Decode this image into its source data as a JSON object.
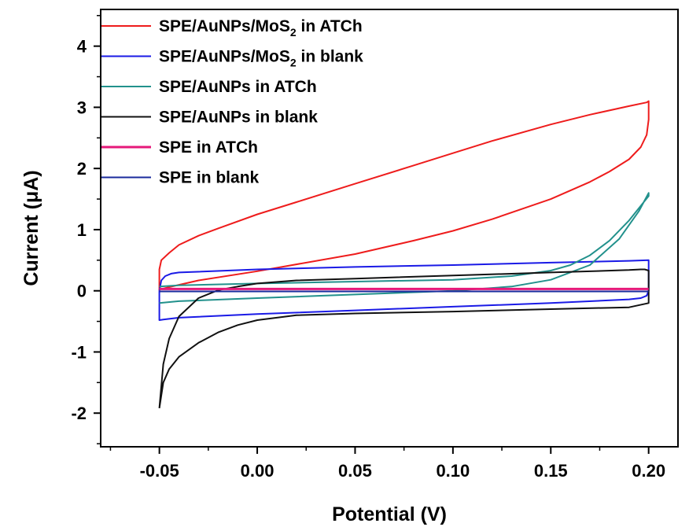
{
  "chart_data": {
    "type": "line",
    "title": "",
    "xlabel": "Potential (V)",
    "ylabel": "Current (μA)",
    "xlim": [
      -0.08,
      0.215
    ],
    "ylim": [
      -2.55,
      4.6
    ],
    "x_ticks": [
      -0.05,
      0.0,
      0.05,
      0.1,
      0.15,
      0.2
    ],
    "x_tick_labels": [
      "-0.05",
      "0.00",
      "0.05",
      "0.10",
      "0.15",
      "0.20"
    ],
    "y_ticks": [
      -2,
      -1,
      0,
      1,
      2,
      3,
      4
    ],
    "y_tick_labels": [
      "-2",
      "-1",
      "0",
      "1",
      "2",
      "3",
      "4"
    ],
    "grid": false,
    "legend_position": "top-left",
    "series": [
      {
        "name": "SPE/AuNPs/MoS2 in ATCh",
        "legend": {
          "main": "SPE/AuNPs/MoS",
          "sub": "2",
          "tail": " in ATCh"
        },
        "color": "#ee1c1c",
        "x": [
          -0.05,
          -0.05,
          -0.049,
          -0.045,
          -0.04,
          -0.03,
          -0.02,
          0.0,
          0.02,
          0.05,
          0.08,
          0.1,
          0.12,
          0.15,
          0.17,
          0.19,
          0.199,
          0.2,
          0.2,
          0.199,
          0.196,
          0.19,
          0.18,
          0.17,
          0.15,
          0.12,
          0.1,
          0.08,
          0.05,
          0.0,
          -0.03,
          -0.045,
          -0.05
        ],
        "y": [
          0.0,
          0.35,
          0.5,
          0.62,
          0.75,
          0.9,
          1.02,
          1.25,
          1.45,
          1.75,
          2.05,
          2.25,
          2.45,
          2.72,
          2.88,
          3.02,
          3.08,
          3.1,
          2.8,
          2.55,
          2.35,
          2.15,
          1.95,
          1.78,
          1.5,
          1.17,
          0.98,
          0.82,
          0.6,
          0.32,
          0.17,
          0.06,
          0.02
        ]
      },
      {
        "name": "SPE/AuNPs/MoS2 in blank",
        "legend": {
          "main": "SPE/AuNPs/MoS",
          "sub": "2",
          "tail": " in blank"
        },
        "color": "#1a1ae6",
        "x": [
          -0.05,
          -0.049,
          -0.047,
          -0.044,
          -0.04,
          0.0,
          0.05,
          0.1,
          0.15,
          0.19,
          0.2,
          0.2,
          0.199,
          0.196,
          0.19,
          0.15,
          0.1,
          0.05,
          0.0,
          -0.04,
          -0.048,
          -0.05,
          -0.05
        ],
        "y": [
          0.0,
          0.17,
          0.24,
          0.28,
          0.3,
          0.35,
          0.39,
          0.42,
          0.46,
          0.49,
          0.5,
          0.0,
          -0.08,
          -0.12,
          -0.14,
          -0.2,
          -0.26,
          -0.32,
          -0.38,
          -0.44,
          -0.47,
          -0.48,
          0.0
        ]
      },
      {
        "name": "SPE/AuNPs in ATCh",
        "legend": {
          "main": "SPE/AuNPs in ATCh"
        },
        "color": "#22918c",
        "x": [
          -0.05,
          -0.04,
          0.0,
          0.05,
          0.1,
          0.13,
          0.15,
          0.17,
          0.185,
          0.195,
          0.2,
          0.2,
          0.19,
          0.18,
          0.17,
          0.16,
          0.15,
          0.13,
          0.1,
          0.05,
          0.0,
          -0.04,
          -0.05
        ],
        "y": [
          -0.2,
          -0.17,
          -0.12,
          -0.06,
          0.0,
          0.07,
          0.18,
          0.42,
          0.85,
          1.3,
          1.6,
          1.55,
          1.15,
          0.82,
          0.58,
          0.42,
          0.33,
          0.24,
          0.18,
          0.15,
          0.12,
          0.09,
          0.07
        ]
      },
      {
        "name": "SPE/AuNPs in blank",
        "legend": {
          "main": "SPE/AuNPs in blank"
        },
        "color": "#111111",
        "x": [
          -0.05,
          -0.048,
          -0.045,
          -0.04,
          -0.03,
          -0.02,
          -0.01,
          0.0,
          0.02,
          0.05,
          0.1,
          0.15,
          0.19,
          0.2,
          0.2,
          0.198,
          0.196,
          0.19,
          0.15,
          0.1,
          0.05,
          0.02,
          0.0,
          -0.01,
          -0.02,
          -0.03,
          -0.04,
          -0.045,
          -0.048,
          -0.05
        ],
        "y": [
          -1.92,
          -1.5,
          -1.28,
          -1.08,
          -0.85,
          -0.68,
          -0.56,
          -0.48,
          -0.4,
          -0.37,
          -0.34,
          -0.3,
          -0.27,
          -0.2,
          0.33,
          0.35,
          0.35,
          0.34,
          0.3,
          0.25,
          0.2,
          0.17,
          0.12,
          0.07,
          0.01,
          -0.12,
          -0.42,
          -0.78,
          -1.2,
          -1.92
        ]
      },
      {
        "name": "SPE in ATCh",
        "legend": {
          "main": "SPE in ATCh"
        },
        "color": "#e6197a",
        "x": [
          -0.05,
          0.0,
          0.05,
          0.1,
          0.15,
          0.2
        ],
        "y": [
          0.03,
          0.03,
          0.03,
          0.03,
          0.03,
          0.03
        ]
      },
      {
        "name": "SPE in blank",
        "legend": {
          "main": "SPE in blank"
        },
        "color": "#1a2a9c",
        "x": [
          -0.05,
          0.0,
          0.05,
          0.1,
          0.15,
          0.2
        ],
        "y": [
          -0.01,
          -0.01,
          -0.01,
          -0.01,
          -0.01,
          -0.01
        ]
      }
    ]
  }
}
